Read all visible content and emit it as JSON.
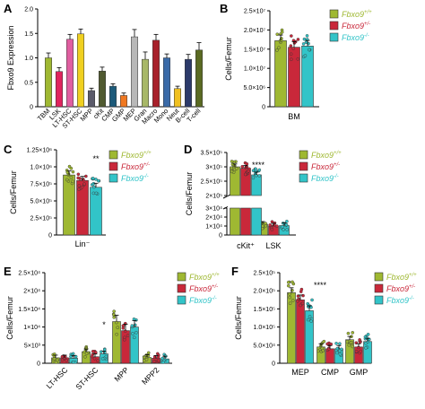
{
  "colors": {
    "wt": "#9fb832",
    "het": "#c9283a",
    "ko": "#32c4c8"
  },
  "legend": [
    {
      "base": "Fbxo9",
      "sup": "+/+",
      "key": "wt"
    },
    {
      "base": "Fbxo9",
      "sup": "+/-",
      "key": "het"
    },
    {
      "base": "Fbxo9",
      "sup": "-/-",
      "key": "ko"
    }
  ],
  "chart_data": [
    {
      "panel": "A",
      "type": "bar",
      "ylabel": "Fbxo9 Expression",
      "ylim": [
        0,
        2.0
      ],
      "yticks": [
        "0",
        "0.5",
        "1.0",
        "1.5",
        "2.0"
      ],
      "categories": [
        "TBM",
        "LSK",
        "LT-HSC",
        "ST-HSC",
        "MPP",
        "cKit",
        "CMP",
        "GMP",
        "MEP",
        "Gran",
        "Macro",
        "Mono",
        "Neut",
        "B-cell",
        "T-cell"
      ],
      "values": [
        1.0,
        0.72,
        1.38,
        1.49,
        0.33,
        0.73,
        0.42,
        0.23,
        1.43,
        0.97,
        1.36,
        1.0,
        0.37,
        0.97,
        1.16
      ],
      "errors": [
        0.1,
        0.08,
        0.1,
        0.1,
        0.05,
        0.08,
        0.05,
        0.05,
        0.15,
        0.15,
        0.12,
        0.08,
        0.05,
        0.1,
        0.15
      ],
      "bar_colors": [
        "#9fb832",
        "#e0245e",
        "#e05ea0",
        "#f0d020",
        "#5a5a6a",
        "#505a30",
        "#1c5a7a",
        "#f07820",
        "#b8b8b8",
        "#a8b868",
        "#a8202a",
        "#3a6aa8",
        "#f0c020",
        "#2c3a6a",
        "#5a6a22"
      ]
    },
    {
      "panel": "B",
      "type": "bar",
      "ylabel": "Cells/Femur",
      "ylim": [
        0,
        25000000.0
      ],
      "yticks": [
        "0",
        "5.0×10⁶",
        "1.0×10⁷",
        "1.5×10⁷",
        "2.0×10⁷",
        "2.5×10⁷"
      ],
      "categories": [
        "BM"
      ],
      "series": [
        {
          "key": "wt",
          "values": [
            17200000.0
          ]
        },
        {
          "key": "het",
          "values": [
            15500000.0
          ]
        },
        {
          "key": "ko",
          "values": [
            15800000.0
          ]
        }
      ]
    },
    {
      "panel": "C",
      "type": "bar",
      "ylabel": "Cells/Femur",
      "ylim": [
        0,
        1250000.0
      ],
      "yticks": [
        "0",
        "2.5×10⁵",
        "5.0×10⁵",
        "7.5×10⁵",
        "1.0×10⁶",
        "1.25×10⁶"
      ],
      "categories": [
        "Lin⁻"
      ],
      "significance": [
        "**"
      ],
      "series": [
        {
          "key": "wt",
          "values": [
            880000.0
          ]
        },
        {
          "key": "het",
          "values": [
            800000.0
          ]
        },
        {
          "key": "ko",
          "values": [
            700000.0
          ]
        }
      ]
    },
    {
      "panel": "D",
      "type": "bar",
      "ylabel": "Cells/Femur",
      "broken_axis": true,
      "yticks_upper": [
        "2×10⁵",
        "2.5×10⁵",
        "3×10⁵",
        "3.5×10⁵"
      ],
      "yticks_lower": [
        "0",
        "1×10⁴",
        "2×10⁴",
        "3×10⁴"
      ],
      "categories": [
        "cKit⁺",
        "LSK"
      ],
      "significance": [
        "****",
        ""
      ],
      "series": [
        {
          "key": "wt",
          "values": [
            300000.0,
            12000.0
          ]
        },
        {
          "key": "het",
          "values": [
            295000.0,
            10000.0
          ]
        },
        {
          "key": "ko",
          "values": [
            272000.0,
            10500.0
          ]
        }
      ]
    },
    {
      "panel": "E",
      "type": "bar",
      "ylabel": "Cells/Femur",
      "ylim": [
        0,
        25000.0
      ],
      "yticks": [
        "0",
        "5×10³",
        "1×10⁴",
        "1.5×10⁴",
        "2×10⁴",
        "2.5×10⁴"
      ],
      "categories": [
        "LT-HSC",
        "ST-HSC",
        "MPP",
        "MPP2"
      ],
      "significance": [
        "",
        "*",
        "",
        ""
      ],
      "series": [
        {
          "key": "wt",
          "values": [
            1500.0,
            3200.0,
            11500.0,
            1600.0
          ]
        },
        {
          "key": "het",
          "values": [
            1500.0,
            1800.0,
            9000.0,
            1400.0
          ]
        },
        {
          "key": "ko",
          "values": [
            1400.0,
            2600.0,
            10000.0,
            1200.0
          ]
        }
      ]
    },
    {
      "panel": "F",
      "type": "bar",
      "ylabel": "Cells/Femur",
      "ylim": [
        0,
        250000.0
      ],
      "yticks": [
        "0",
        "5.0×10⁴",
        "1.0×10⁵",
        "1.5×10⁵",
        "2.0×10⁵",
        "2.5×10⁵"
      ],
      "categories": [
        "MEP",
        "CMP",
        "GMP"
      ],
      "significance": [
        "****",
        "",
        ""
      ],
      "series": [
        {
          "key": "wt",
          "values": [
            195000.0,
            45000.0,
            65000.0
          ]
        },
        {
          "key": "het",
          "values": [
            175000.0,
            40000.0,
            45000.0
          ]
        },
        {
          "key": "ko",
          "values": [
            145000.0,
            40000.0,
            60000.0
          ]
        }
      ]
    }
  ]
}
